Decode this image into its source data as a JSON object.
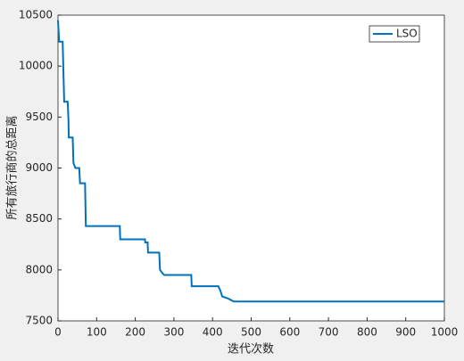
{
  "chart_data": {
    "type": "line",
    "x": [
      0,
      3,
      12,
      13,
      16,
      25,
      27,
      28,
      38,
      40,
      45,
      55,
      57,
      70,
      72,
      160,
      161,
      225,
      226,
      232,
      233,
      262,
      264,
      270,
      275,
      345,
      346,
      415,
      420,
      425,
      440,
      455,
      1000
    ],
    "series": [
      {
        "name": "LSO",
        "color": "#0072bd",
        "values": [
          10450,
          10240,
          10240,
          10100,
          9650,
          9650,
          9480,
          9300,
          9300,
          9050,
          9000,
          9000,
          8850,
          8850,
          8430,
          8430,
          8300,
          8300,
          8270,
          8270,
          8170,
          8170,
          8000,
          7970,
          7950,
          7950,
          7840,
          7840,
          7800,
          7740,
          7720,
          7690,
          7690
        ]
      }
    ],
    "xlabel": "迭代次数",
    "ylabel": "所有旅行商的总距离",
    "xlim": [
      0,
      1000
    ],
    "xticks": [
      0,
      100,
      200,
      300,
      400,
      500,
      600,
      700,
      800,
      900,
      1000
    ],
    "ylim": [
      7500,
      10500
    ],
    "yticks": [
      7500,
      8000,
      8500,
      9000,
      9500,
      10000,
      10500
    ],
    "legend": "northeast"
  }
}
